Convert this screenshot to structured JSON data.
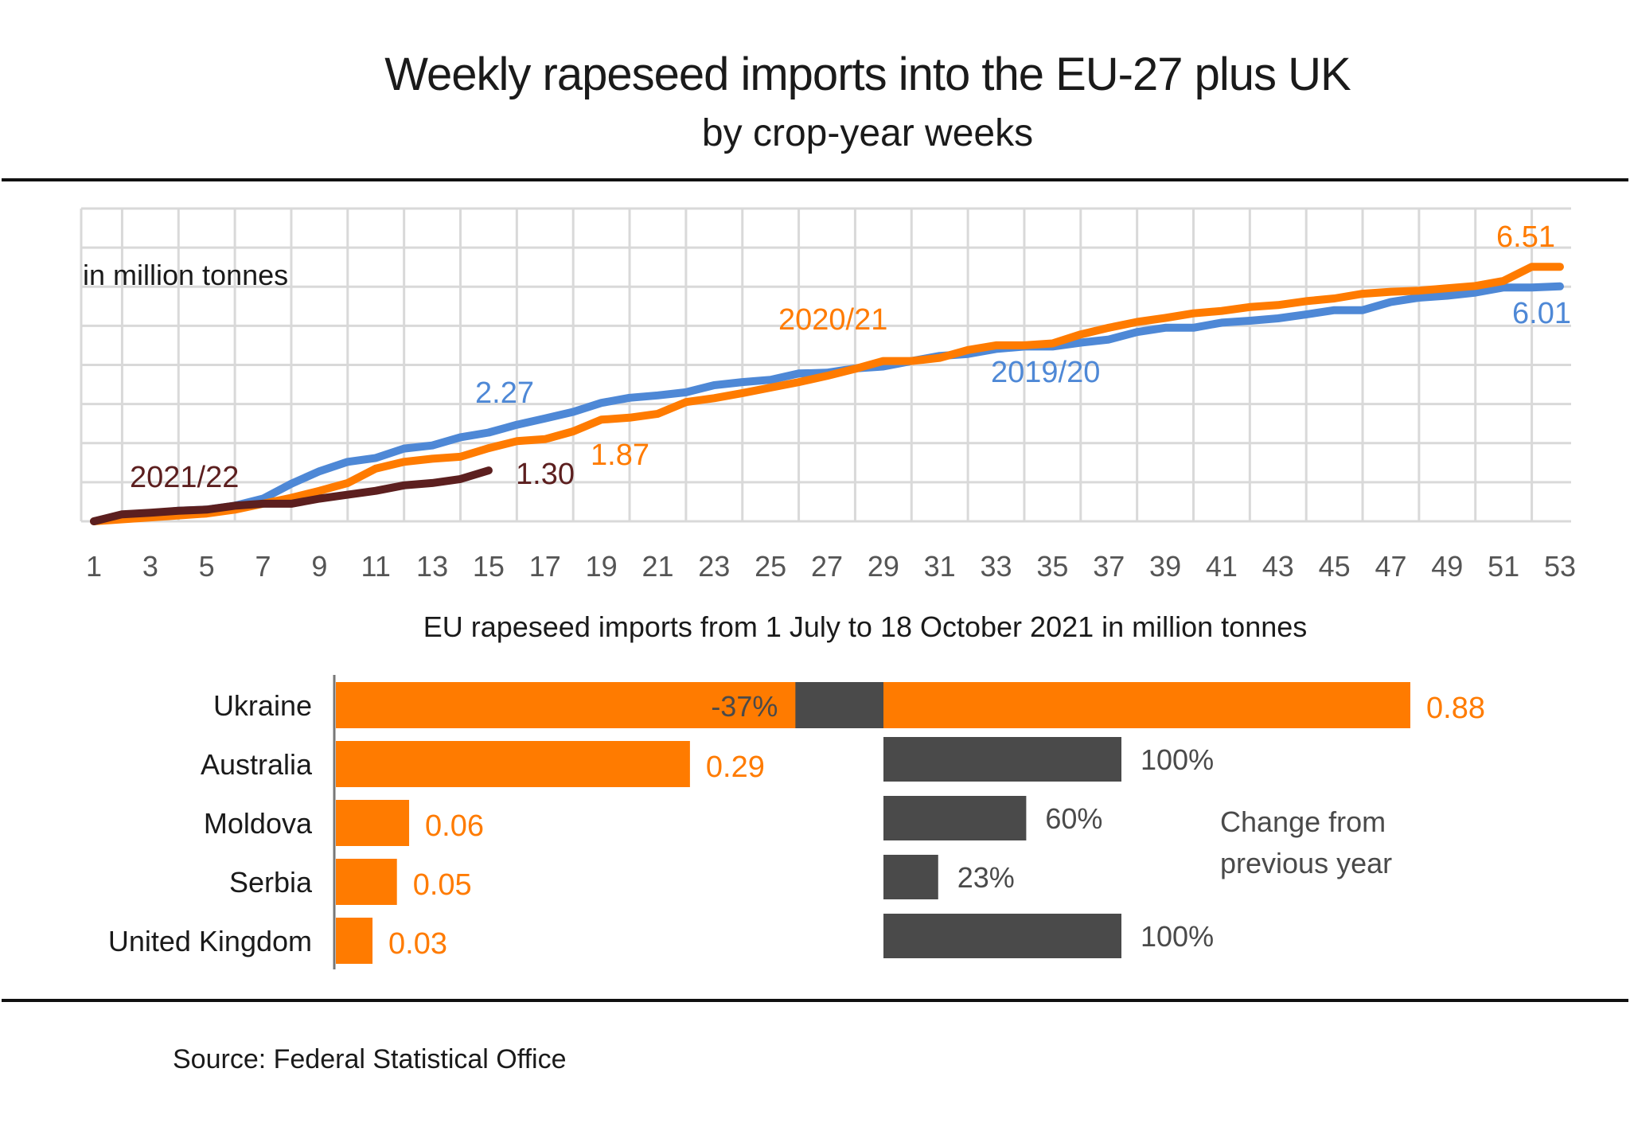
{
  "header": {
    "title": "Weekly rapeseed imports into the EU-27 plus UK",
    "subtitle": "by crop-year weeks"
  },
  "source": "Source:  Federal Statistical Office",
  "colors": {
    "s2019": "#4e88d6",
    "s2020": "#ff7b00",
    "s2021": "#5c1f1f",
    "bar_orange": "#ff7b00",
    "bar_dark": "#4a4a4a",
    "grid": "#d9d9d9"
  },
  "chart_data": [
    {
      "type": "line",
      "title": "Weekly rapeseed imports into the EU-27 plus UK",
      "subtitle": "by crop-year weeks",
      "ylabel": "in million tonnes",
      "xlabel": "",
      "xlim": [
        1,
        53
      ],
      "ylim": [
        0,
        8
      ],
      "grid": true,
      "x_ticks": [
        "1",
        "3",
        "5",
        "7",
        "9",
        "11",
        "13",
        "15",
        "17",
        "19",
        "21",
        "23",
        "25",
        "27",
        "29",
        "31",
        "33",
        "35",
        "37",
        "39",
        "41",
        "43",
        "45",
        "47",
        "49",
        "51",
        "53"
      ],
      "series": [
        {
          "name": "2019/20",
          "color_key": "s2019",
          "values": [
            0,
            0.13,
            0.2,
            0.27,
            0.3,
            0.4,
            0.58,
            0.96,
            1.28,
            1.52,
            1.62,
            1.86,
            1.94,
            2.15,
            2.27,
            2.47,
            2.63,
            2.8,
            3.03,
            3.16,
            3.22,
            3.3,
            3.48,
            3.56,
            3.62,
            3.78,
            3.8,
            3.91,
            3.96,
            4.1,
            4.23,
            4.28,
            4.41,
            4.47,
            4.47,
            4.57,
            4.65,
            4.84,
            4.95,
            4.95,
            5.08,
            5.13,
            5.19,
            5.29,
            5.4,
            5.4,
            5.61,
            5.72,
            5.77,
            5.85,
            5.98,
            5.98,
            6.01
          ]
        },
        {
          "name": "2020/21",
          "color_key": "s2020",
          "values": [
            0,
            0.05,
            0.1,
            0.15,
            0.2,
            0.3,
            0.45,
            0.6,
            0.78,
            0.98,
            1.35,
            1.52,
            1.6,
            1.65,
            1.87,
            2.05,
            2.1,
            2.3,
            2.6,
            2.65,
            2.75,
            3.05,
            3.15,
            3.28,
            3.42,
            3.56,
            3.72,
            3.9,
            4.1,
            4.1,
            4.18,
            4.38,
            4.5,
            4.5,
            4.55,
            4.78,
            4.95,
            5.1,
            5.2,
            5.32,
            5.38,
            5.48,
            5.53,
            5.63,
            5.7,
            5.82,
            5.87,
            5.9,
            5.96,
            6.02,
            6.15,
            6.51,
            6.51
          ]
        },
        {
          "name": "2021/22",
          "color_key": "s2021",
          "values": [
            0,
            0.18,
            0.22,
            0.27,
            0.3,
            0.4,
            0.45,
            0.45,
            0.58,
            0.68,
            0.78,
            0.92,
            0.98,
            1.08,
            1.3
          ]
        }
      ],
      "annotations": [
        {
          "text": "2021/22",
          "series": "2021/22"
        },
        {
          "text": "1.30",
          "series": "2021/22"
        },
        {
          "text": "2.27",
          "series": "2019/20"
        },
        {
          "text": "1.87",
          "series": "2020/21"
        },
        {
          "text": "2020/21",
          "series": "2020/21"
        },
        {
          "text": "2019/20",
          "series": "2019/20"
        },
        {
          "text": "6.51",
          "series": "2020/21"
        },
        {
          "text": "6.01",
          "series": "2019/20"
        }
      ]
    },
    {
      "type": "bar",
      "title": "EU rapeseed imports from 1 July to 18 October 2021 in million tonnes",
      "categories": [
        "Ukraine",
        "Australia",
        "Moldova",
        "Serbia",
        "United Kingdom"
      ],
      "series": [
        {
          "name": "Imports (million tonnes)",
          "values": [
            0.88,
            0.29,
            0.06,
            0.05,
            0.03
          ],
          "labels": [
            "0.88",
            "0.29",
            "0.06",
            "0.05",
            "0.03"
          ]
        },
        {
          "name": "Change from previous year (%)",
          "values": [
            -37,
            100,
            60,
            23,
            100
          ],
          "labels": [
            "-37%",
            "100%",
            "60%",
            "23%",
            "100%"
          ]
        }
      ],
      "legend_note": "Change from previous year"
    }
  ]
}
